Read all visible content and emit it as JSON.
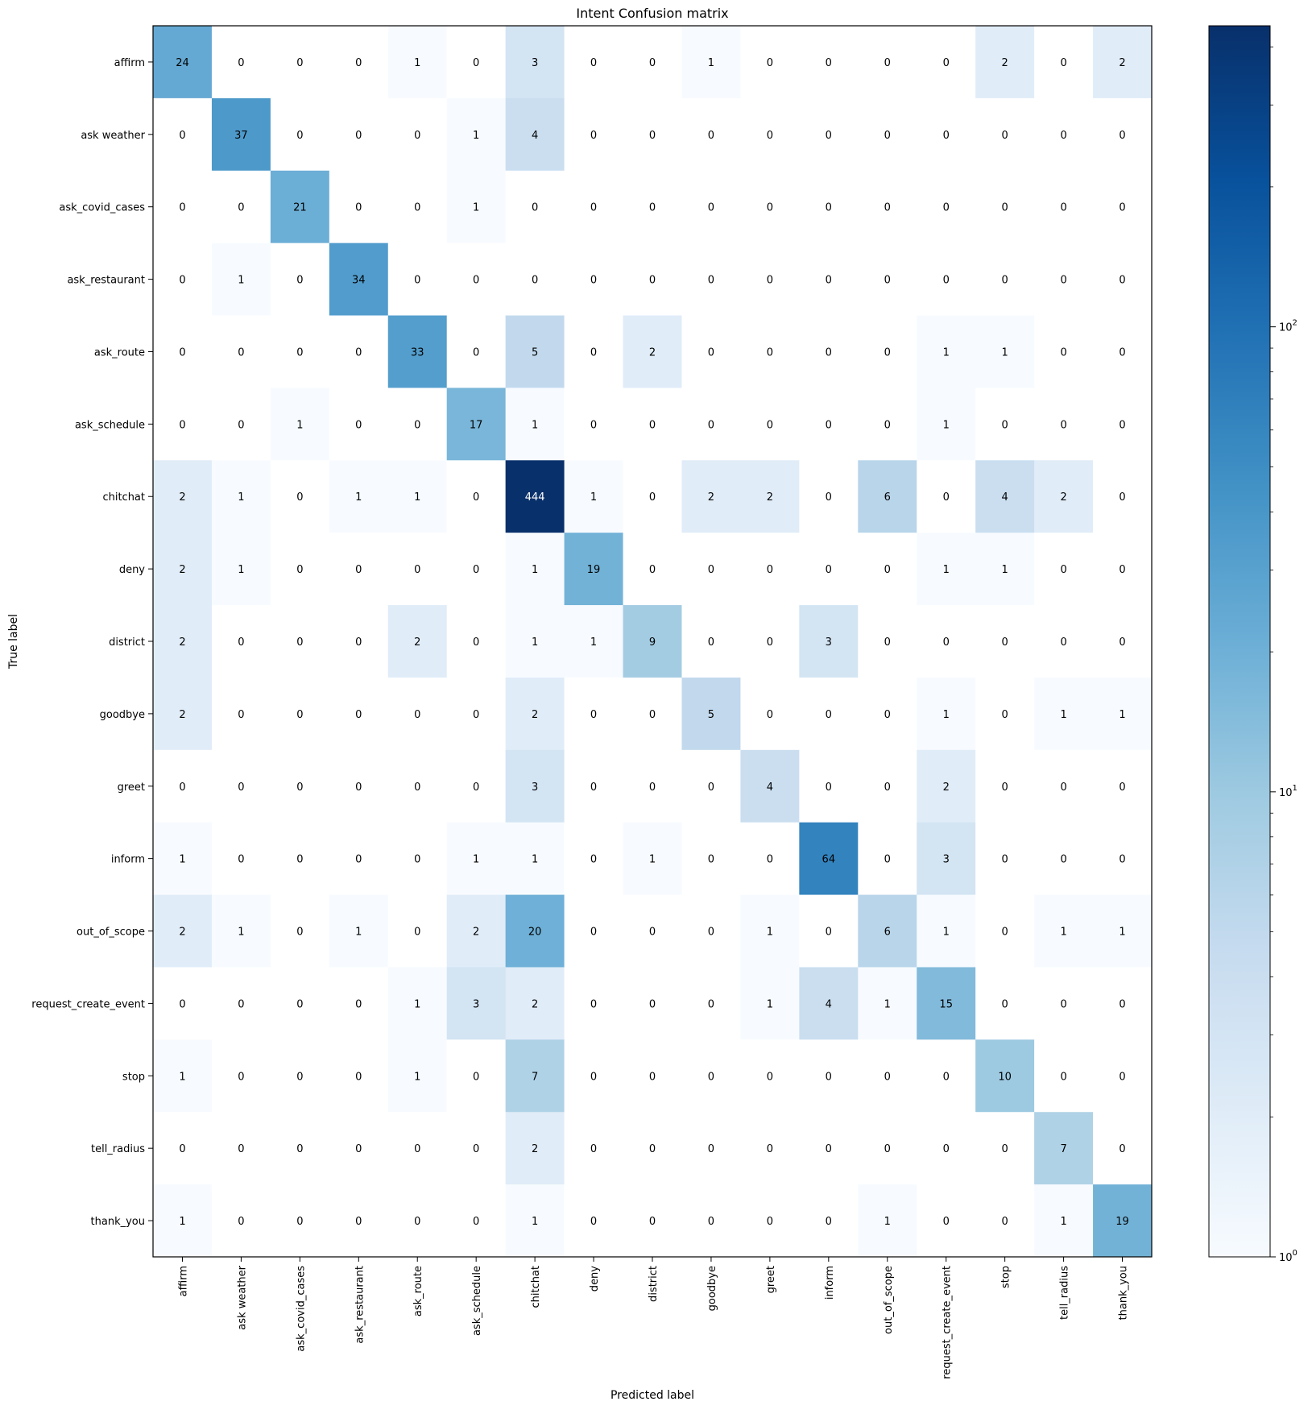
{
  "chart_data": {
    "type": "heatmap",
    "title": "Intent Confusion matrix",
    "xlabel": "Predicted label",
    "ylabel": "True label",
    "labels": [
      "affirm",
      "ask weather",
      "ask_covid_cases",
      "ask_restaurant",
      "ask_route",
      "ask_schedule",
      "chitchat",
      "deny",
      "district",
      "goodbye",
      "greet",
      "inform",
      "out_of_scope",
      "request_create_event",
      "stop",
      "tell_radius",
      "thank_you"
    ],
    "matrix": [
      [
        24,
        0,
        0,
        0,
        1,
        0,
        3,
        0,
        0,
        1,
        0,
        0,
        0,
        0,
        2,
        0,
        2
      ],
      [
        0,
        37,
        0,
        0,
        0,
        1,
        4,
        0,
        0,
        0,
        0,
        0,
        0,
        0,
        0,
        0,
        0
      ],
      [
        0,
        0,
        21,
        0,
        0,
        1,
        0,
        0,
        0,
        0,
        0,
        0,
        0,
        0,
        0,
        0,
        0
      ],
      [
        0,
        1,
        0,
        34,
        0,
        0,
        0,
        0,
        0,
        0,
        0,
        0,
        0,
        0,
        0,
        0,
        0
      ],
      [
        0,
        0,
        0,
        0,
        33,
        0,
        5,
        0,
        2,
        0,
        0,
        0,
        0,
        1,
        1,
        0,
        0
      ],
      [
        0,
        0,
        1,
        0,
        0,
        17,
        1,
        0,
        0,
        0,
        0,
        0,
        0,
        1,
        0,
        0,
        0
      ],
      [
        2,
        1,
        0,
        1,
        1,
        0,
        444,
        1,
        0,
        2,
        2,
        0,
        6,
        0,
        4,
        2,
        0
      ],
      [
        2,
        1,
        0,
        0,
        0,
        0,
        1,
        19,
        0,
        0,
        0,
        0,
        0,
        1,
        1,
        0,
        0
      ],
      [
        2,
        0,
        0,
        0,
        2,
        0,
        1,
        1,
        9,
        0,
        0,
        3,
        0,
        0,
        0,
        0,
        0
      ],
      [
        2,
        0,
        0,
        0,
        0,
        0,
        2,
        0,
        0,
        5,
        0,
        0,
        0,
        1,
        0,
        1,
        1
      ],
      [
        0,
        0,
        0,
        0,
        0,
        0,
        3,
        0,
        0,
        0,
        4,
        0,
        0,
        2,
        0,
        0,
        0
      ],
      [
        1,
        0,
        0,
        0,
        0,
        1,
        1,
        0,
        1,
        0,
        0,
        64,
        0,
        3,
        0,
        0,
        0
      ],
      [
        2,
        1,
        0,
        1,
        0,
        2,
        20,
        0,
        0,
        0,
        1,
        0,
        6,
        1,
        0,
        1,
        1
      ],
      [
        0,
        0,
        0,
        0,
        1,
        3,
        2,
        0,
        0,
        0,
        1,
        4,
        1,
        15,
        0,
        0,
        0
      ],
      [
        1,
        0,
        0,
        0,
        1,
        0,
        7,
        0,
        0,
        0,
        0,
        0,
        0,
        0,
        10,
        0,
        0
      ],
      [
        0,
        0,
        0,
        0,
        0,
        0,
        2,
        0,
        0,
        0,
        0,
        0,
        0,
        0,
        0,
        7,
        0
      ],
      [
        1,
        0,
        0,
        0,
        0,
        0,
        1,
        0,
        0,
        0,
        0,
        0,
        1,
        0,
        0,
        1,
        19
      ]
    ],
    "colormap": "Blues",
    "color_scale": "log",
    "vmin": 1,
    "vmax": 444,
    "colorbar": {
      "scale": "log",
      "ticks": [
        {
          "value": 1,
          "base": "10",
          "exp": "0"
        },
        {
          "value": 10,
          "base": "10",
          "exp": "1"
        },
        {
          "value": 100,
          "base": "10",
          "exp": "2"
        }
      ]
    },
    "text_colors": {
      "dark": "#000000",
      "light": "#ffffff"
    },
    "grid": false
  }
}
